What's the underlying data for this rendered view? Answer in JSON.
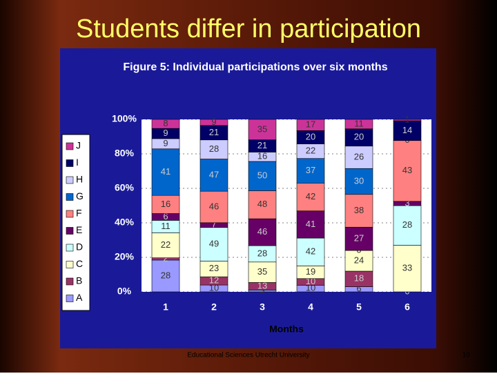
{
  "slide_title": "Students differ in participation",
  "footer": "Educational Sciences Utrecht University",
  "page_number": "10",
  "chart_data": {
    "type": "stacked_bar_100",
    "title": "Figure 5: Individual participations over six months",
    "x_label": "Months",
    "categories": [
      "1",
      "2",
      "3",
      "4",
      "5",
      "6"
    ],
    "ylim": [
      0,
      100
    ],
    "yticks": [
      {
        "value": 0,
        "label": "0%"
      },
      {
        "value": 20,
        "label": "20%"
      },
      {
        "value": 40,
        "label": "40%"
      },
      {
        "value": 60,
        "label": "60%"
      },
      {
        "value": 80,
        "label": "80%"
      },
      {
        "value": 100,
        "label": "100%"
      }
    ],
    "grid": true,
    "legend": "left",
    "series": [
      {
        "name": "A",
        "color": "#9999ff",
        "values": [
          28,
          10,
          3,
          10,
          6,
          0
        ]
      },
      {
        "name": "B",
        "color": "#993366",
        "values": [
          2,
          12,
          13,
          10,
          18,
          0
        ]
      },
      {
        "name": "C",
        "color": "#ffffcc",
        "values": [
          22,
          23,
          35,
          19,
          24,
          33
        ]
      },
      {
        "name": "D",
        "color": "#ccffff",
        "values": [
          11,
          49,
          28,
          42,
          0,
          28
        ]
      },
      {
        "name": "E",
        "color": "#660066",
        "values": [
          6,
          7,
          46,
          41,
          27,
          3
        ]
      },
      {
        "name": "F",
        "color": "#ff8080",
        "values": [
          16,
          46,
          48,
          42,
          38,
          43
        ]
      },
      {
        "name": "G",
        "color": "#0066cc",
        "values": [
          41,
          47,
          50,
          37,
          30,
          0
        ]
      },
      {
        "name": "H",
        "color": "#ccccff",
        "values": [
          9,
          28,
          16,
          22,
          26,
          0
        ]
      },
      {
        "name": "I",
        "color": "#000066",
        "values": [
          9,
          21,
          21,
          20,
          20,
          14
        ]
      },
      {
        "name": "J",
        "color": "#cc3399",
        "values": [
          8,
          9,
          35,
          17,
          11,
          1
        ]
      }
    ]
  }
}
